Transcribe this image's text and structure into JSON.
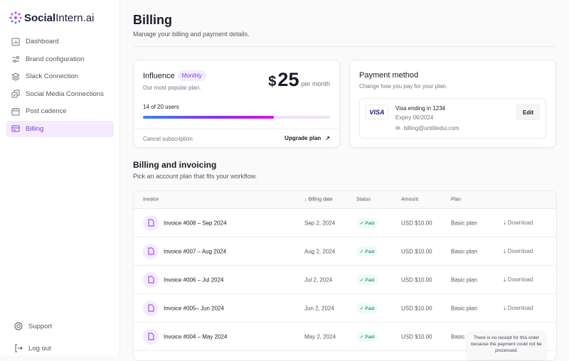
{
  "brand": {
    "name_bold": "Social",
    "name_rest": "Intern.ai"
  },
  "nav": [
    {
      "label": "Dashboard"
    },
    {
      "label": "Brand configuration"
    },
    {
      "label": "Slack Connection"
    },
    {
      "label": "Social Media Connections"
    },
    {
      "label": "Post cadence"
    },
    {
      "label": "Billing"
    }
  ],
  "footer_nav": {
    "support": "Support",
    "logout": "Log out"
  },
  "page": {
    "title": "Billing",
    "subtitle": "Manage your billing and payment details."
  },
  "plan": {
    "name": "Influence",
    "badge": "Monthly",
    "desc": "Our most popular plan.",
    "currency": "$",
    "price": "25",
    "period": "per month",
    "users_text": "14 of 20 users",
    "usage_percent": 70,
    "cancel": "Cancel subscription",
    "upgrade": "Upgrade plan"
  },
  "payment": {
    "title": "Payment method",
    "desc": "Change how you pay for your plan.",
    "brand": "VISA",
    "card": "Visa ending in 1234",
    "expiry": "Expiry 06/2024",
    "email": "billing@untitledui.com",
    "edit": "Edit"
  },
  "invoicing": {
    "title": "Billing and invoicing",
    "desc": "Pick an account plan that fits your workflow.",
    "headers": {
      "invoice": "Invoice",
      "date": "Billing date",
      "status": "Status",
      "amount": "Amount",
      "plan": "Plan"
    },
    "rows": [
      {
        "name": "Invoice #008 – Sep 2024",
        "date": "Sep 2, 2024",
        "status": "Paid",
        "amount": "USD $10.00",
        "plan": "Basic plan",
        "action": "Download"
      },
      {
        "name": "Invoice #007 – Aug 2024",
        "date": "Aug 2, 2024",
        "status": "Paid",
        "amount": "USD $10.00",
        "plan": "Basic plan",
        "action": "Download"
      },
      {
        "name": "Invoice #006 – Jul 2024",
        "date": "Jul 2, 2024",
        "status": "Paid",
        "amount": "USD $10.00",
        "plan": "Basic plan",
        "action": "Download"
      },
      {
        "name": "Invoice #005– Jun 2024",
        "date": "Jun 2, 2024",
        "status": "Paid",
        "amount": "USD $10.00",
        "plan": "Basic plan",
        "action": "Download"
      },
      {
        "name": "Invoice #004 – May 2024",
        "date": "May 2, 2024",
        "status": "Paid",
        "amount": "USD $10.00",
        "plan": "Basic",
        "action": ""
      }
    ]
  },
  "tooltip": "There is no receipt for this order because the payment could not be processed."
}
